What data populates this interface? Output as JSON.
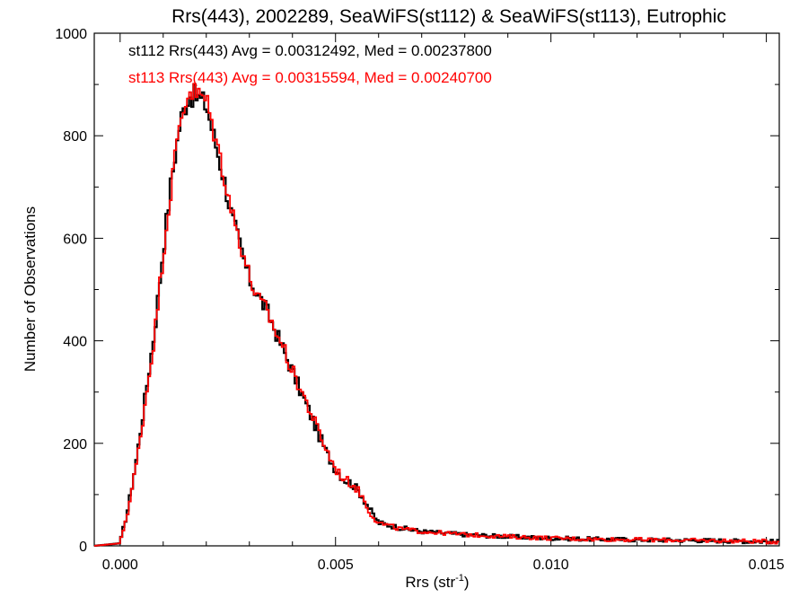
{
  "chart_data": {
    "type": "histogram",
    "title": "Rrs(443), 2002289, SeaWiFS(st112) & SeaWiFS(st113), Eutrophic",
    "xlabel": "Rrs (str",
    "xlabel_sup": "-1",
    "xlabel_end": ")",
    "ylabel": "Number of Observations",
    "xlim": [
      -0.0006,
      0.0153
    ],
    "ylim": [
      0,
      1000
    ],
    "xticks": [
      0.0,
      0.005,
      0.01,
      0.015
    ],
    "xtick_labels": [
      "0.000",
      "0.005",
      "0.010",
      "0.015"
    ],
    "yticks": [
      0,
      200,
      400,
      600,
      800,
      1000
    ],
    "ytick_labels": [
      "0",
      "200",
      "400",
      "600",
      "800",
      "1000"
    ],
    "bin_width": 5e-05,
    "grid": false,
    "series": [
      {
        "name": "st112",
        "color": "#000000",
        "annotation": "st112 Rrs(443) Avg = 0.00312492, Med = 0.00237800",
        "x": [
          -0.0006,
          0.0,
          0.0002,
          0.0004,
          0.0006,
          0.0008,
          0.001,
          0.0012,
          0.0014,
          0.0016,
          0.0018,
          0.002,
          0.0022,
          0.0024,
          0.0026,
          0.0028,
          0.003,
          0.0032,
          0.0034,
          0.0036,
          0.0038,
          0.004,
          0.0042,
          0.0044,
          0.0046,
          0.0048,
          0.005,
          0.0052,
          0.0054,
          0.0056,
          0.0058,
          0.006,
          0.0065,
          0.007,
          0.008,
          0.009,
          0.01,
          0.011,
          0.012,
          0.013,
          0.014,
          0.0153
        ],
        "values": [
          0,
          5,
          80,
          180,
          300,
          420,
          580,
          720,
          830,
          880,
          875,
          860,
          790,
          720,
          640,
          580,
          520,
          490,
          460,
          420,
          380,
          340,
          300,
          260,
          220,
          180,
          150,
          130,
          120,
          100,
          70,
          45,
          35,
          28,
          22,
          18,
          15,
          13,
          12,
          11,
          10,
          8
        ]
      },
      {
        "name": "st113",
        "color": "#ff0000",
        "annotation": "st113 Rrs(443) Avg = 0.00315594, Med = 0.00240700",
        "x": [
          -0.0006,
          0.0,
          0.0002,
          0.0004,
          0.0006,
          0.0008,
          0.001,
          0.0012,
          0.0014,
          0.0016,
          0.0018,
          0.002,
          0.0022,
          0.0024,
          0.0026,
          0.0028,
          0.003,
          0.0032,
          0.0034,
          0.0036,
          0.0038,
          0.004,
          0.0042,
          0.0044,
          0.0046,
          0.0048,
          0.005,
          0.0052,
          0.0054,
          0.0056,
          0.0058,
          0.006,
          0.0065,
          0.007,
          0.008,
          0.009,
          0.01,
          0.011,
          0.012,
          0.013,
          0.014,
          0.0153
        ],
        "values": [
          0,
          5,
          75,
          170,
          290,
          410,
          570,
          710,
          830,
          890,
          880,
          870,
          800,
          730,
          650,
          590,
          525,
          480,
          460,
          420,
          385,
          340,
          305,
          265,
          225,
          185,
          150,
          130,
          120,
          100,
          65,
          45,
          33,
          28,
          22,
          18,
          15,
          13,
          12,
          11,
          10,
          8
        ]
      }
    ]
  }
}
